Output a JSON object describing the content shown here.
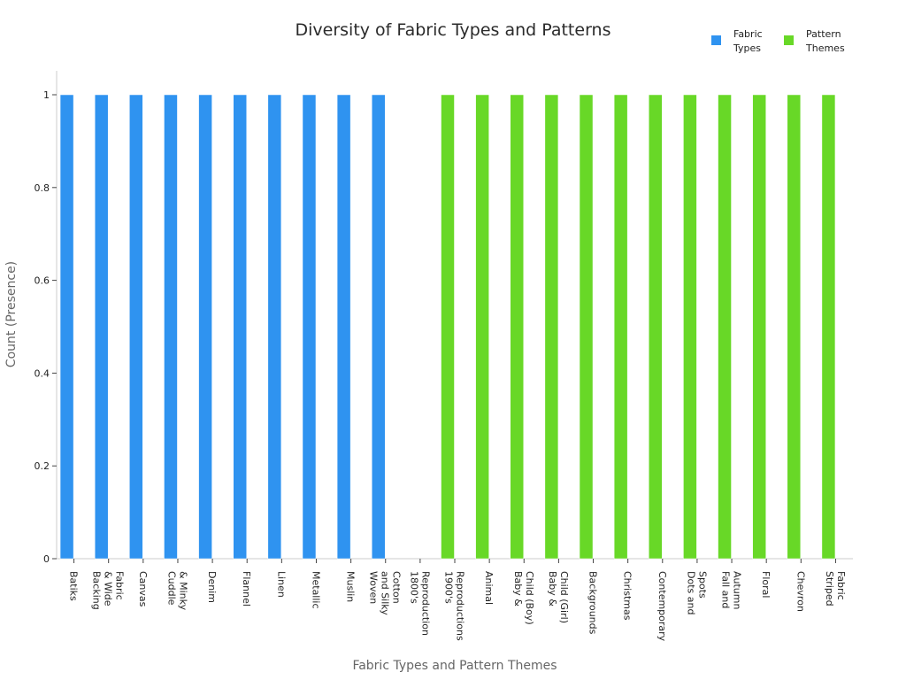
{
  "chart_data": {
    "type": "bar",
    "title": "Diversity of Fabric Types and Patterns",
    "xlabel": "Fabric Types and Pattern Themes",
    "ylabel": "Count (Presence)",
    "ylim": [
      0,
      1.05
    ],
    "yticks": [
      "0",
      "0.2",
      "0.4",
      "0.6",
      "0.8",
      "1"
    ],
    "grid": false,
    "legend_position": "top-right",
    "categories": [
      [
        "Batiks"
      ],
      [
        "Backing",
        "& Wide",
        "Fabric"
      ],
      [
        "Canvas"
      ],
      [
        "Cuddle",
        "& Minky"
      ],
      [
        "Denim"
      ],
      [
        "Flannel"
      ],
      [
        "Linen"
      ],
      [
        "Metallic"
      ],
      [
        "Muslin"
      ],
      [
        "Woven",
        "and Silky",
        "Cotton"
      ],
      [
        "1800's",
        "Reproduction"
      ],
      [
        "1900's",
        "Reproductions"
      ],
      [
        "Animal"
      ],
      [
        "Baby &",
        "Child (Boy)"
      ],
      [
        "Baby &",
        "Child (Girl)"
      ],
      [
        "Backgrounds"
      ],
      [
        "Christmas"
      ],
      [
        "Contemporary"
      ],
      [
        "Dots and",
        "Spots"
      ],
      [
        "Fall and",
        "Autumn"
      ],
      [
        "Floral"
      ],
      [
        "Chevron"
      ],
      [
        "Striped",
        "Fabric"
      ]
    ],
    "series": [
      {
        "name": "Fabric Types",
        "legend_lines": [
          "Fabric",
          "Types"
        ],
        "color": "#2f93f0",
        "values": [
          1,
          1,
          1,
          1,
          1,
          1,
          1,
          1,
          1,
          1,
          0,
          0,
          0,
          0,
          0,
          0,
          0,
          0,
          0,
          0,
          0,
          0,
          0
        ]
      },
      {
        "name": "Pattern Themes",
        "legend_lines": [
          "Pattern",
          "Themes"
        ],
        "color": "#68d827",
        "values": [
          0,
          0,
          0,
          0,
          0,
          0,
          0,
          0,
          0,
          0,
          0,
          1,
          1,
          1,
          1,
          1,
          1,
          1,
          1,
          1,
          1,
          1,
          1
        ]
      }
    ]
  }
}
